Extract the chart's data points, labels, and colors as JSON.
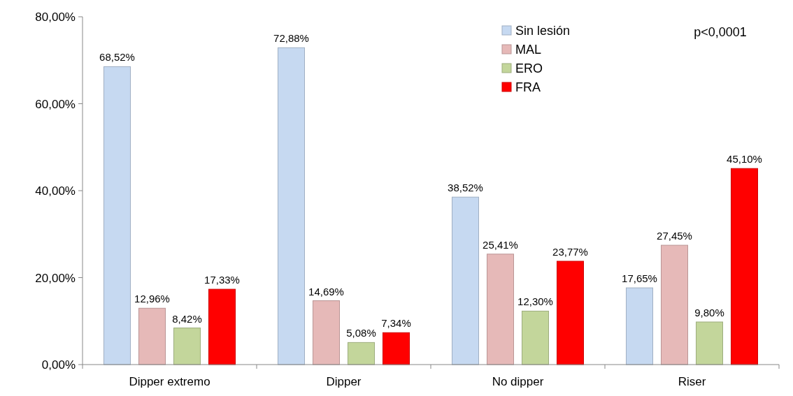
{
  "chart_data": {
    "type": "bar",
    "categories": [
      "Dipper extremo",
      "Dipper",
      "No dipper",
      "Riser"
    ],
    "series": [
      {
        "name": "Sin lesión",
        "color": "#c6d9f1",
        "values": [
          68.52,
          72.88,
          38.52,
          17.65
        ],
        "value_labels": [
          "68,52%",
          "72,88%",
          "38,52%",
          "17,65%"
        ]
      },
      {
        "name": "MAL",
        "color": "#e6b9b8",
        "values": [
          12.96,
          14.69,
          25.41,
          27.45
        ],
        "value_labels": [
          "12,96%",
          "14,69%",
          "25,41%",
          "27,45%"
        ]
      },
      {
        "name": "ERO",
        "color": "#c3d69b",
        "values": [
          8.42,
          5.08,
          12.3,
          9.8
        ],
        "value_labels": [
          "8,42%",
          "5,08%",
          "12,30%",
          "9,80%"
        ]
      },
      {
        "name": "FRA",
        "color": "#ff0000",
        "values": [
          17.33,
          7.34,
          23.77,
          45.1
        ],
        "value_labels": [
          "17,33%",
          "7,34%",
          "23,77%",
          "45,10%"
        ]
      }
    ],
    "ylim": [
      0,
      80
    ],
    "yticks": [
      {
        "value": 0,
        "label": "0,00%"
      },
      {
        "value": 20,
        "label": "20,00%"
      },
      {
        "value": 40,
        "label": "40,00%"
      },
      {
        "value": 60,
        "label": "60,00%"
      },
      {
        "value": 80,
        "label": "80,00%"
      }
    ],
    "legend": "top right",
    "annotations": [
      "p<0,0001"
    ]
  }
}
